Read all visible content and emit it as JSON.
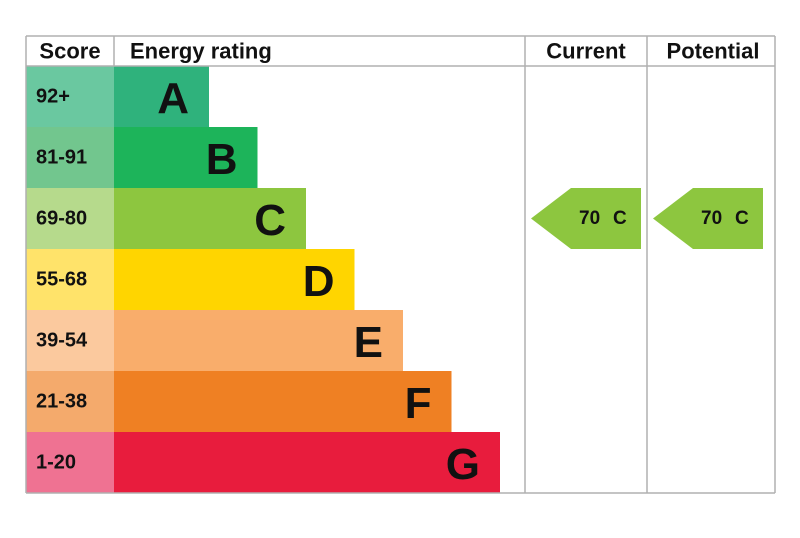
{
  "header": {
    "score": "Score",
    "rating": "Energy rating",
    "current": "Current",
    "potential": "Potential"
  },
  "bands": [
    {
      "score": "92+",
      "letter": "A",
      "color": "#2fb27c",
      "light": "#6ac8a0"
    },
    {
      "score": "81-91",
      "letter": "B",
      "color": "#1db45a",
      "light": "#72c68e"
    },
    {
      "score": "69-80",
      "letter": "C",
      "color": "#8dc63f",
      "light": "#b6da8c"
    },
    {
      "score": "55-68",
      "letter": "D",
      "color": "#ffd500",
      "light": "#ffe36a"
    },
    {
      "score": "39-54",
      "letter": "E",
      "color": "#f9ad6b",
      "light": "#fbc99e"
    },
    {
      "score": "21-38",
      "letter": "F",
      "color": "#ef8023",
      "light": "#f4aa6c"
    },
    {
      "score": "1-20",
      "letter": "G",
      "color": "#e81c3d",
      "light": "#ef7292"
    }
  ],
  "current": {
    "score": 70,
    "letter": "C",
    "color": "#8dc63f"
  },
  "potential": {
    "score": 70,
    "letter": "C",
    "color": "#8dc63f"
  }
}
